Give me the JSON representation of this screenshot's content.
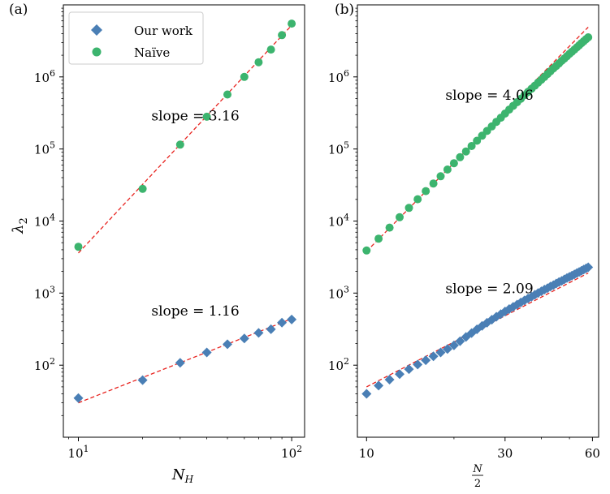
{
  "chart_data": [
    {
      "type": "scatter",
      "panel_label": "(a)",
      "xlabel": "N_H",
      "ylabel": "λ_2",
      "xscale": "log",
      "yscale": "log",
      "xlim": [
        8.5,
        115
      ],
      "ylim": [
        10,
        10000000
      ],
      "grid": false,
      "legend": {
        "placement": "top-left",
        "entries": [
          {
            "name": "Our work",
            "color": "#4a7fb5",
            "marker": "diamond"
          },
          {
            "name": "Naïve",
            "color": "#3cb46e",
            "marker": "circle"
          }
        ]
      },
      "x_ticks": [
        {
          "value": 10,
          "base": "10",
          "exp": "1"
        },
        {
          "value": 100,
          "base": "10",
          "exp": "2"
        }
      ],
      "y_ticks": [
        {
          "value": 100,
          "base": "10",
          "exp": "2"
        },
        {
          "value": 1000,
          "base": "10",
          "exp": "3"
        },
        {
          "value": 10000,
          "base": "10",
          "exp": "4"
        },
        {
          "value": 100000,
          "base": "10",
          "exp": "5"
        },
        {
          "value": 1000000,
          "base": "10",
          "exp": "6"
        }
      ],
      "series": [
        {
          "name": "Naïve",
          "marker": "circle",
          "color": "#3cb46e",
          "x": [
            10,
            20,
            30,
            40,
            50,
            60,
            70,
            80,
            90,
            100
          ],
          "y": [
            4400,
            28000,
            115000,
            280000,
            570000,
            1000000,
            1600000,
            2400000,
            3800000,
            5500000
          ]
        },
        {
          "name": "Our work",
          "marker": "diamond",
          "color": "#4a7fb5",
          "x": [
            10,
            20,
            30,
            40,
            50,
            60,
            70,
            80,
            90,
            100
          ],
          "y": [
            35,
            62,
            108,
            150,
            195,
            235,
            280,
            315,
            390,
            430
          ]
        }
      ],
      "fits": [
        {
          "x": [
            10,
            100
          ],
          "y": [
            3600,
            5200000
          ],
          "color": "#e8231f"
        },
        {
          "x": [
            10,
            100
          ],
          "y": [
            30,
            440
          ],
          "color": "#e8231f"
        }
      ],
      "annotations": [
        {
          "text": "slope = 3.16",
          "x": 22,
          "y": 250000
        },
        {
          "text": "slope = 1.16",
          "x": 22,
          "y": 490
        }
      ]
    },
    {
      "type": "scatter",
      "panel_label": "(b)",
      "xlabel": "N/2",
      "xscale": "log",
      "yscale": "log",
      "xlim": [
        9.3,
        63
      ],
      "ylim": [
        10,
        10000000
      ],
      "grid": false,
      "x_ticks": [
        {
          "value": 10,
          "label": "10"
        },
        {
          "value": 30,
          "label": "30"
        },
        {
          "value": 60,
          "label": "60"
        }
      ],
      "y_ticks": [
        {
          "value": 100,
          "base": "10",
          "exp": "2"
        },
        {
          "value": 1000,
          "base": "10",
          "exp": "3"
        },
        {
          "value": 10000,
          "base": "10",
          "exp": "4"
        },
        {
          "value": 100000,
          "base": "10",
          "exp": "5"
        },
        {
          "value": 1000000,
          "base": "10",
          "exp": "6"
        }
      ],
      "series": [
        {
          "name": "Naïve",
          "marker": "circle",
          "color": "#3cb46e",
          "x": [
            10,
            11,
            12,
            13,
            14,
            15,
            16,
            17,
            18,
            19,
            20,
            21,
            22,
            23,
            24,
            25,
            26,
            27,
            28,
            29,
            30,
            31,
            32,
            33,
            34,
            35,
            36,
            37,
            38,
            39,
            40,
            41,
            42,
            43,
            44,
            45,
            46,
            47,
            48,
            49,
            50,
            51,
            52,
            53,
            54,
            55,
            56,
            57,
            58
          ],
          "y": [
            3900,
            5700,
            8100,
            11300,
            15200,
            20100,
            26000,
            33200,
            41800,
            51800,
            63400,
            77000,
            92500,
            110000,
            130000,
            153000,
            178000,
            206000,
            238000,
            272000,
            310000,
            352000,
            397000,
            446000,
            499000,
            557000,
            619000,
            686000,
            757000,
            834000,
            916000,
            1000000,
            1100000,
            1200000,
            1310000,
            1420000,
            1540000,
            1670000,
            1800000,
            1940000,
            2090000,
            2240000,
            2400000,
            2570000,
            2750000,
            2940000,
            3130000,
            3340000,
            3550000
          ]
        },
        {
          "name": "Our work",
          "marker": "diamond",
          "color": "#4a7fb5",
          "x": [
            10,
            11,
            12,
            13,
            14,
            15,
            16,
            17,
            18,
            19,
            20,
            21,
            22,
            23,
            24,
            25,
            26,
            27,
            28,
            29,
            30,
            31,
            32,
            33,
            34,
            35,
            36,
            37,
            38,
            39,
            40,
            41,
            42,
            43,
            44,
            45,
            46,
            47,
            48,
            49,
            50,
            51,
            52,
            53,
            54,
            55,
            56,
            57,
            58
          ],
          "y": [
            40,
            52,
            63,
            75,
            88,
            102,
            117,
            133,
            150,
            168,
            188,
            215,
            246,
            279,
            314,
            350,
            388,
            428,
            469,
            511,
            555,
            600,
            646,
            693,
            741,
            791,
            842,
            894,
            947,
            1000,
            1060,
            1120,
            1170,
            1230,
            1290,
            1360,
            1420,
            1480,
            1550,
            1620,
            1680,
            1750,
            1820,
            1900,
            1970,
            2040,
            2120,
            2200,
            2280
          ]
        }
      ],
      "fits": [
        {
          "x": [
            10,
            58
          ],
          "y": [
            3800,
            4900000
          ],
          "color": "#e8231f"
        },
        {
          "x": [
            10,
            58
          ],
          "y": [
            50,
            1900
          ],
          "color": "#e8231f"
        }
      ],
      "annotations": [
        {
          "text": "slope = 4.06",
          "x": 18.7,
          "y": 480000
        },
        {
          "text": "slope = 2.09",
          "x": 18.7,
          "y": 1000
        }
      ]
    }
  ]
}
